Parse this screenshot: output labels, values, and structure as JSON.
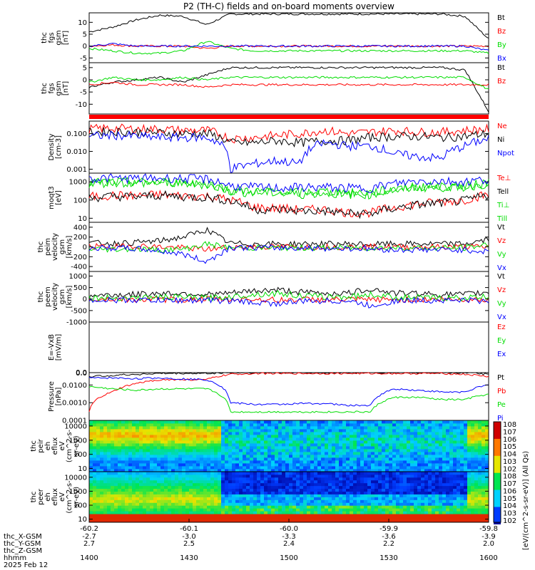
{
  "title": "P2 (TH-C) fields and on-board moments overview",
  "colors": {
    "black": "#000000",
    "red": "#ff0000",
    "green": "#00dd00",
    "blue": "#0000ff"
  },
  "chart_data": [
    {
      "type": "line",
      "ylabel": [
        "thc",
        "fgs",
        "gsm",
        "[nT]"
      ],
      "ylim": [
        -7,
        14
      ],
      "yticks": [
        "10",
        "5",
        "0",
        "-5"
      ],
      "yvals": [
        10,
        5,
        0,
        -5
      ],
      "legend": [
        {
          "name": "Bt",
          "color": "black"
        },
        {
          "name": "Bz",
          "color": "red"
        },
        {
          "name": "By",
          "color": "green"
        },
        {
          "name": "Bx",
          "color": "blue"
        }
      ],
      "series": {
        "Bt": [
          6,
          8,
          11,
          13,
          12.5,
          9,
          13.5,
          13.5,
          13.5,
          13.5,
          13.5,
          13.5,
          13.5,
          13.5,
          13.5,
          13.5,
          12.5,
          3
        ],
        "Bz": [
          0,
          0.5,
          0,
          0,
          0,
          -1,
          0,
          0,
          0,
          0,
          0,
          0,
          0,
          0,
          0,
          0,
          0,
          0
        ],
        "By": [
          -1,
          -2,
          -3,
          -3,
          -2,
          2,
          -1,
          -2,
          -2,
          -2,
          -2,
          -2,
          -2,
          -2,
          -2,
          -2,
          -2,
          -3
        ],
        "Bx": [
          0,
          1,
          0,
          0,
          0,
          0,
          0,
          0,
          0,
          0,
          0,
          0,
          0,
          0,
          0,
          0,
          0,
          -2
        ]
      }
    },
    {
      "type": "line",
      "ylabel": [
        "thc",
        "fgs",
        "gsm",
        "[nT]"
      ],
      "ylim": [
        -14,
        7
      ],
      "yticks": [
        "5",
        "0",
        "-5",
        "-10"
      ],
      "yvals": [
        5,
        0,
        -5,
        -10
      ],
      "legend": [
        {
          "name": "Bt",
          "color": "black"
        },
        {
          "name": "Bz",
          "color": "red"
        }
      ],
      "series": {
        "Bt": [
          -3,
          -1,
          0,
          1,
          -1,
          2,
          5,
          5,
          5,
          5,
          5,
          5,
          5,
          5,
          5,
          5,
          4,
          -13
        ],
        "Bz": [
          -2,
          -1,
          -2,
          -2,
          -2,
          -3,
          -2,
          -2,
          -2,
          -2,
          -2,
          -2,
          -2,
          -2,
          -2,
          -2,
          -2,
          -2
        ],
        "By": [
          -1,
          1,
          0,
          0,
          1,
          0,
          1,
          1,
          1,
          1,
          1,
          1,
          1,
          1,
          1,
          1,
          1,
          -4
        ]
      }
    },
    {
      "type": "line",
      "log": true,
      "ylabel": [
        "Density",
        "[cm-3]"
      ],
      "ylim": [
        0.0006,
        0.5
      ],
      "yticks": [
        "0.100",
        "0.010",
        "0.001"
      ],
      "yvals": [
        0.1,
        0.01,
        0.001
      ],
      "legend": [
        {
          "name": "Ne",
          "color": "red"
        },
        {
          "name": "Ni",
          "color": "black"
        },
        {
          "name": "Npot",
          "color": "blue"
        }
      ],
      "series": {
        "Ne": [
          0.18,
          0.2,
          0.18,
          0.18,
          0.15,
          0.15,
          0.05,
          0.06,
          0.08,
          0.1,
          0.15,
          0.1,
          0.12,
          0.15,
          0.12,
          0.12,
          0.15,
          0.18
        ],
        "Ni": [
          0.12,
          0.13,
          0.12,
          0.11,
          0.1,
          0.1,
          0.03,
          0.03,
          0.04,
          0.03,
          0.04,
          0.04,
          0.06,
          0.07,
          0.07,
          0.06,
          0.07,
          0.1
        ],
        "Npot": [
          0.07,
          0.08,
          0.07,
          0.06,
          0.06,
          0.06,
          0.001,
          0.002,
          0.003,
          0.002,
          0.03,
          0.02,
          0.02,
          0.007,
          0.005,
          0.004,
          0.02,
          0.05
        ]
      }
    },
    {
      "type": "line",
      "log": true,
      "ylabel": [
        "moqt3",
        "[eV]"
      ],
      "ylim": [
        6,
        3000
      ],
      "yticks": [
        "1000",
        "100",
        "10"
      ],
      "yvals": [
        1000,
        100,
        10
      ],
      "legend": [
        {
          "name": "Te⊥",
          "color": "red"
        },
        {
          "name": "Tell",
          "color": "black"
        },
        {
          "name": "Ti⊥",
          "color": "green"
        },
        {
          "name": "Till",
          "color": "green"
        }
      ],
      "series": {
        "Te": [
          150,
          180,
          170,
          200,
          170,
          160,
          100,
          40,
          35,
          30,
          30,
          20,
          20,
          40,
          60,
          80,
          100,
          200
        ],
        "Tell": [
          130,
          160,
          150,
          180,
          150,
          140,
          90,
          30,
          30,
          25,
          25,
          18,
          18,
          35,
          55,
          70,
          90,
          180
        ],
        "Ti": [
          800,
          900,
          850,
          900,
          800,
          700,
          300,
          250,
          250,
          200,
          250,
          200,
          200,
          350,
          500,
          500,
          500,
          800
        ],
        "Till": [
          900,
          1000,
          950,
          1000,
          900,
          800,
          350,
          300,
          300,
          250,
          300,
          250,
          250,
          400,
          550,
          550,
          550,
          900
        ],
        "Tib": [
          1500,
          1600,
          1500,
          1600,
          1500,
          1400,
          600,
          500,
          450,
          500,
          500,
          450,
          450,
          800,
          1100,
          1100,
          1000,
          1400
        ]
      }
    },
    {
      "type": "line",
      "ylabel": [
        "thc",
        "peim",
        "velocity",
        "gsm",
        "[km/s]"
      ],
      "ylim": [
        -500,
        500
      ],
      "yticks": [
        "400",
        "200",
        "0",
        "-200",
        "-400"
      ],
      "yvals": [
        400,
        200,
        0,
        -200,
        -400
      ],
      "legend": [
        {
          "name": "Vt",
          "color": "black"
        },
        {
          "name": "Vz",
          "color": "red"
        },
        {
          "name": "Vy",
          "color": "green"
        },
        {
          "name": "Vx",
          "color": "blue"
        }
      ],
      "series": {
        "Vt": [
          80,
          70,
          90,
          120,
          200,
          350,
          70,
          60,
          60,
          60,
          60,
          60,
          50,
          60,
          60,
          60,
          60,
          150
        ],
        "Vz": [
          10,
          0,
          20,
          0,
          -20,
          -50,
          0,
          0,
          0,
          0,
          0,
          0,
          0,
          0,
          0,
          0,
          0,
          0
        ],
        "Vy": [
          -40,
          -50,
          -40,
          -60,
          -50,
          60,
          -20,
          -20,
          -20,
          -20,
          -20,
          -20,
          -20,
          -20,
          -20,
          -20,
          -20,
          50
        ],
        "Vx": [
          -30,
          -20,
          -40,
          -80,
          -150,
          -300,
          -10,
          -20,
          -20,
          -20,
          -30,
          -30,
          -40,
          -60,
          -60,
          -60,
          -60,
          -100
        ]
      }
    },
    {
      "type": "line",
      "ylabel": [
        "thc",
        "peem",
        "velocity",
        "gsm",
        "[km/s]"
      ],
      "ylim": [
        -1000,
        1200
      ],
      "yticks": [
        "1000",
        "500",
        "0",
        "-500",
        "-1000"
      ],
      "yvals": [
        1000,
        500,
        0,
        -500,
        -1000
      ],
      "legend": [
        {
          "name": "Vt",
          "color": "black"
        },
        {
          "name": "Vz",
          "color": "red"
        },
        {
          "name": "Vy",
          "color": "green"
        },
        {
          "name": "Vx",
          "color": "blue"
        }
      ],
      "series": {
        "Vt": [
          150,
          180,
          200,
          250,
          250,
          200,
          250,
          350,
          400,
          300,
          250,
          250,
          450,
          250,
          250,
          200,
          200,
          300
        ],
        "Vz": [
          -20,
          0,
          -30,
          -20,
          -30,
          0,
          -20,
          0,
          -50,
          -20,
          -20,
          -30,
          -30,
          -20,
          -20,
          -20,
          -20,
          0
        ],
        "Vy": [
          50,
          50,
          60,
          80,
          80,
          50,
          100,
          200,
          250,
          150,
          100,
          100,
          200,
          80,
          60,
          50,
          50,
          100
        ],
        "Vx": [
          -30,
          -50,
          -40,
          -60,
          -60,
          -50,
          -80,
          -150,
          -200,
          -100,
          -80,
          -80,
          -300,
          -80,
          -60,
          -50,
          -50,
          -100
        ]
      }
    },
    {
      "type": "line",
      "ylabel": [
        "E=-VxB",
        "[mV/m]"
      ],
      "yticks": [],
      "yvals": [],
      "xtick0": "0.0",
      "legend": [
        {
          "name": "Ez",
          "color": "red"
        },
        {
          "name": "Ey",
          "color": "green"
        },
        {
          "name": "Ex",
          "color": "blue"
        }
      ],
      "series": {}
    },
    {
      "type": "line",
      "log": true,
      "ylabel": [
        "Pressure",
        "[nPa]"
      ],
      "ylim": [
        0.0001,
        0.05
      ],
      "yticks": [
        "0.0100",
        "0.0010",
        "0.0001"
      ],
      "yvals": [
        0.01,
        0.001,
        0.0001
      ],
      "topTick": "0.0",
      "legend": [
        {
          "name": "Pt",
          "color": "black"
        },
        {
          "name": "Pb",
          "color": "red"
        },
        {
          "name": "Pe",
          "color": "green"
        },
        {
          "name": "Pi",
          "color": "blue"
        }
      ],
      "series": {
        "Pt": [
          0.03,
          0.035,
          0.04,
          0.045,
          0.045,
          0.045,
          0.05,
          0.05,
          0.05,
          0.05,
          0.05,
          0.05,
          0.05,
          0.05,
          0.05,
          0.05,
          0.05,
          0.04
        ],
        "Pb": [
          0.0003,
          0.004,
          0.012,
          0.02,
          0.02,
          0.02,
          0.04,
          0.045,
          0.045,
          0.045,
          0.045,
          0.045,
          0.045,
          0.045,
          0.045,
          0.045,
          0.04,
          0.03
        ],
        "Pe": [
          0.008,
          0.006,
          0.005,
          0.006,
          0.006,
          0.006,
          0.0003,
          0.0003,
          0.0003,
          0.0003,
          0.0003,
          0.0003,
          0.0003,
          0.002,
          0.002,
          0.0015,
          0.0015,
          0.003
        ],
        "Pi": [
          0.025,
          0.025,
          0.023,
          0.025,
          0.022,
          0.02,
          0.001,
          0.0008,
          0.0008,
          0.0009,
          0.0009,
          0.0007,
          0.0007,
          0.006,
          0.005,
          0.004,
          0.004,
          0.01
        ]
      }
    },
    {
      "type": "heatmap",
      "ylabel": [
        "thc",
        "peir",
        "eh",
        "eflux",
        "eV",
        "(cm^2-s-",
        "sr-eV)"
      ],
      "yticks": [
        "10000",
        "1000",
        "100",
        "10"
      ],
      "yvals": [
        10000,
        1000,
        100,
        10
      ]
    },
    {
      "type": "heatmap",
      "ylabel": [
        "thc",
        "peer",
        "eh",
        "eflux",
        "eV",
        "(cm^2-s-",
        "sr-eV)"
      ],
      "yticks": [
        "10000",
        "1000",
        "100",
        "10"
      ],
      "yvals": [
        10000,
        1000,
        100,
        10
      ]
    }
  ],
  "colorbar": {
    "label": "[eV/(cm^2-s-sr-eV)] (All Qs)",
    "ticks": [
      "10^8",
      "10^7",
      "10^6",
      "10^5",
      "10^4",
      "10^3",
      "10^2",
      "10^8",
      "10^7",
      "10^6",
      "10^5",
      "10^4",
      "10^3",
      "10^2"
    ]
  },
  "footer": {
    "rows": [
      {
        "label": "thc_X-GSM",
        "vals": [
          "-2.7",
          "-3.0",
          "-3.3",
          "-3.6",
          "-3.9"
        ]
      },
      {
        "label": "thc_Y-GSM",
        "vals": [
          "2.7",
          "2.5",
          "2.4",
          "2.2",
          "2.0"
        ]
      },
      {
        "label": "thc_Z-GSM",
        "vals": [
          "",
          "",
          "",
          "",
          ""
        ]
      },
      {
        "label": "hhmm",
        "vals": [
          "1400",
          "1430",
          "1500",
          "1530",
          "1600"
        ]
      }
    ],
    "xticks": [
      "-60.2",
      "-60.1",
      "-60.0",
      "-59.9",
      "-59.8"
    ],
    "date": "2025 Feb 12"
  }
}
